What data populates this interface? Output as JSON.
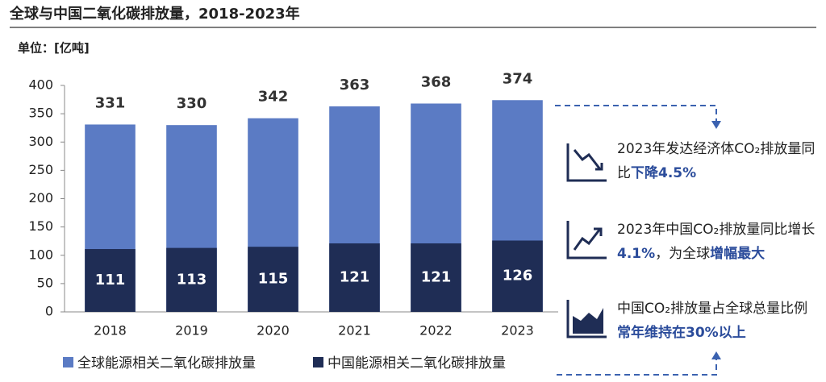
{
  "chart_data": {
    "type": "bar",
    "title": "全球与中国二氧化碳排放量，2018-2023年",
    "unit_label": "单位：[亿吨]",
    "categories": [
      "2018",
      "2019",
      "2020",
      "2021",
      "2022",
      "2023"
    ],
    "series": [
      {
        "name": "全球能源相关二氧化碳排放量",
        "color": "#5b7bc4",
        "values": [
          331,
          330,
          342,
          363,
          368,
          374
        ]
      },
      {
        "name": "中国能源相关二氧化碳排放量",
        "color": "#1f2d55",
        "values": [
          111,
          113,
          115,
          121,
          121,
          126
        ]
      }
    ],
    "overlap": true,
    "ylim": [
      0,
      400
    ],
    "yticks": [
      0,
      50,
      100,
      150,
      200,
      250,
      300,
      350,
      400
    ],
    "grid": false,
    "legend": "bottom"
  },
  "annotations": [
    {
      "parts": [
        {
          "text": "2023年发达经济体CO₂排放量同比",
          "emphasis": false
        },
        {
          "text": "下降4.5%",
          "emphasis": true
        }
      ]
    },
    {
      "parts": [
        {
          "text": "2023年中国CO₂排放量同比增长",
          "emphasis": false
        },
        {
          "text": "4.1%",
          "emphasis": true
        },
        {
          "text": "，为全球",
          "emphasis": false
        },
        {
          "text": "增幅最大",
          "emphasis": true
        }
      ]
    },
    {
      "parts": [
        {
          "text": "中国CO₂排放量占全球总量比例",
          "emphasis": false
        },
        {
          "text": "常年维持在30%以上",
          "emphasis": true
        }
      ]
    }
  ],
  "highlight_color": "#2b4c9b"
}
